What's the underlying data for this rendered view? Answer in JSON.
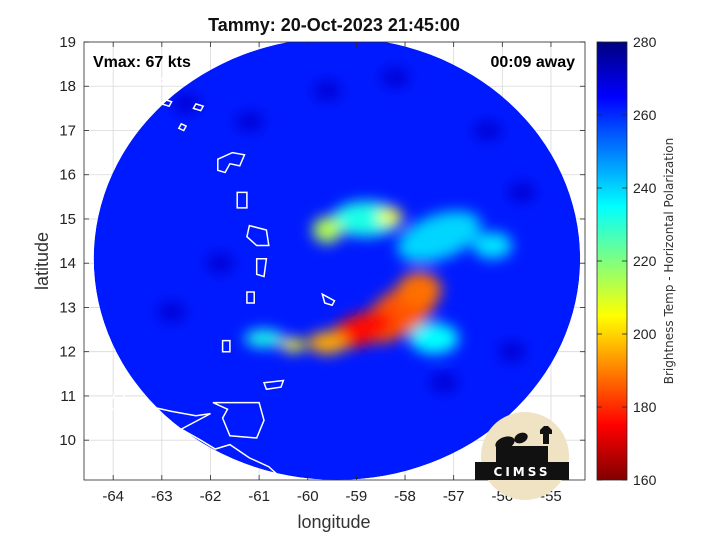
{
  "chart_data": {
    "type": "heatmap",
    "title": "Tammy: 20-Oct-2023 21:45:00",
    "xlabel": "longitude",
    "ylabel": "latitude",
    "xlim": [
      -64.6,
      -54.3
    ],
    "ylim": [
      9.1,
      19.0
    ],
    "xticks": [
      -64,
      -63,
      -62,
      -61,
      -60,
      -59,
      -58,
      -57,
      -56,
      -55
    ],
    "yticks": [
      10,
      11,
      12,
      13,
      14,
      15,
      16,
      17,
      18,
      19
    ],
    "grid": true,
    "annotations": {
      "vmax": "Vmax: 67 kts",
      "time_away": "00:09 away"
    },
    "colorbar": {
      "label": "Brightness Temp - Horizontal Polarization",
      "min": 160,
      "max": 280,
      "ticks": [
        160,
        180,
        200,
        220,
        240,
        260,
        280
      ],
      "colormap": "jet"
    },
    "swath": {
      "center_lon": -59.4,
      "center_lat": 14.1,
      "radius_lon": 5.0,
      "radius_lat": 5.0,
      "background_temp": 262
    },
    "features": [
      {
        "lon": -58.1,
        "lat": 12.9,
        "sx": 0.9,
        "sy": 0.5,
        "temp": 185,
        "angle": -35
      },
      {
        "lon": -58.9,
        "lat": 12.5,
        "sx": 0.7,
        "sy": 0.35,
        "temp": 176,
        "angle": -20
      },
      {
        "lon": -57.7,
        "lat": 13.4,
        "sx": 0.45,
        "sy": 0.4,
        "temp": 188,
        "angle": 0
      },
      {
        "lon": -59.6,
        "lat": 12.2,
        "sx": 0.4,
        "sy": 0.25,
        "temp": 195,
        "angle": 0
      },
      {
        "lon": -60.3,
        "lat": 12.15,
        "sx": 0.25,
        "sy": 0.15,
        "temp": 205,
        "angle": 0
      },
      {
        "lon": -60.9,
        "lat": 12.3,
        "sx": 0.4,
        "sy": 0.2,
        "temp": 232,
        "angle": 0
      },
      {
        "lon": -58.8,
        "lat": 15.0,
        "sx": 0.7,
        "sy": 0.4,
        "temp": 232,
        "angle": 0
      },
      {
        "lon": -58.3,
        "lat": 15.05,
        "sx": 0.25,
        "sy": 0.2,
        "temp": 206,
        "angle": 0
      },
      {
        "lon": -59.6,
        "lat": 14.75,
        "sx": 0.3,
        "sy": 0.3,
        "temp": 214,
        "angle": 0
      },
      {
        "lon": -57.3,
        "lat": 14.6,
        "sx": 0.9,
        "sy": 0.5,
        "temp": 240,
        "angle": -20
      },
      {
        "lon": -56.2,
        "lat": 14.4,
        "sx": 0.4,
        "sy": 0.3,
        "temp": 238,
        "angle": 0
      },
      {
        "lon": -57.4,
        "lat": 12.3,
        "sx": 0.5,
        "sy": 0.35,
        "temp": 235,
        "angle": 0
      }
    ],
    "land_colorbands": [
      "#ffffff"
    ]
  },
  "logo": {
    "text": "CIMSS"
  }
}
